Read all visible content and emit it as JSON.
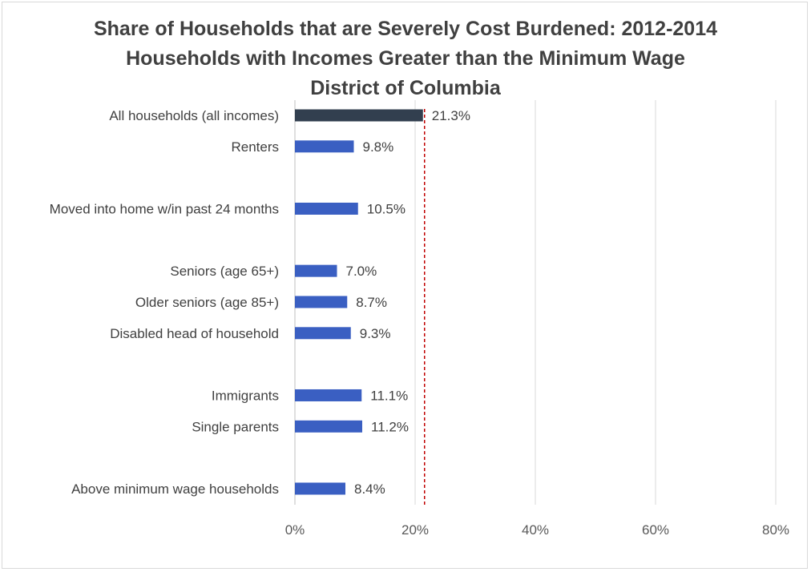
{
  "chart_data": {
    "type": "bar",
    "orientation": "horizontal",
    "title": "Share of Households that are Severely Cost Burdened: 2012-2014",
    "subtitle": "Households with Incomes Greater than the Minimum Wage",
    "subtitle2": "District of Columbia",
    "categories": [
      "All households (all incomes)",
      "Renters",
      "",
      "Moved into home w/in past 24 months",
      "",
      "Seniors (age 65+)",
      "Older seniors (age 85+)",
      "Disabled head of household",
      "",
      "Immigrants",
      "Single parents",
      "",
      "Above minimum wage households"
    ],
    "values": [
      21.3,
      9.8,
      null,
      10.5,
      null,
      7.0,
      8.7,
      9.3,
      null,
      11.1,
      11.2,
      null,
      8.4
    ],
    "value_labels": [
      "21.3%",
      "9.8%",
      "",
      "10.5%",
      "",
      "7.0%",
      "8.7%",
      "9.3%",
      "",
      "11.1%",
      "11.2%",
      "",
      "8.4%"
    ],
    "highlight_index": 0,
    "colors": {
      "highlight": "#323F4F",
      "bar": "#3A5FC2",
      "reference_line": "#C00000",
      "grid": "#D9D9D9",
      "axis_line": "#BFBFBF"
    },
    "reference_line": {
      "value": 21.3,
      "style": "dashed"
    },
    "xlim": [
      0,
      80
    ],
    "x_ticks": [
      0,
      20,
      40,
      60,
      80
    ],
    "x_tick_labels": [
      "0%",
      "20%",
      "40%",
      "60%",
      "80%"
    ],
    "grid": true,
    "legend": "none"
  }
}
